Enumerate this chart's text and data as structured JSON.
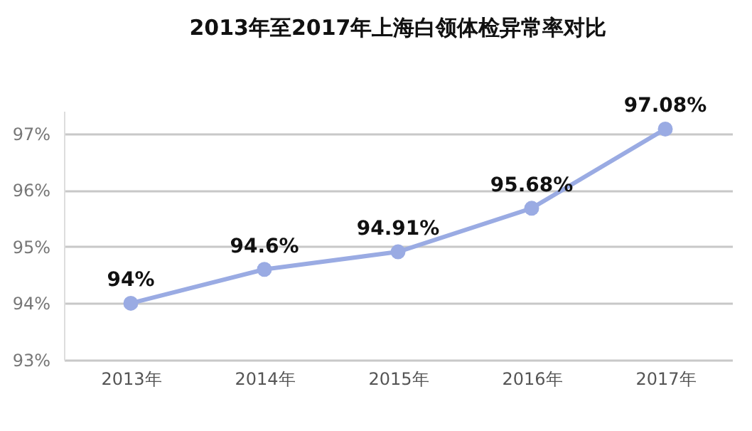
{
  "chart_data": {
    "type": "line",
    "title": "2013年至2017年上海白领体检异常率对比",
    "categories": [
      "2013年",
      "2014年",
      "2015年",
      "2016年",
      "2017年"
    ],
    "series": [
      {
        "color": "#9aabe3",
        "values": [
          94,
          94.6,
          94.91,
          95.68,
          97.08
        ],
        "value_labels": [
          "94%",
          "94.6%",
          "94.91%",
          "95.68%",
          "97.08%"
        ]
      }
    ],
    "ylim": [
      93,
      97.4
    ],
    "yticks": [
      {
        "value": 93,
        "label": "93%"
      },
      {
        "value": 94,
        "label": "94%"
      },
      {
        "value": 95,
        "label": "95%"
      },
      {
        "value": 96,
        "label": "96%"
      },
      {
        "value": 97,
        "label": "97%"
      }
    ],
    "grid": "y",
    "marker": "circle",
    "line_style": "solid"
  }
}
